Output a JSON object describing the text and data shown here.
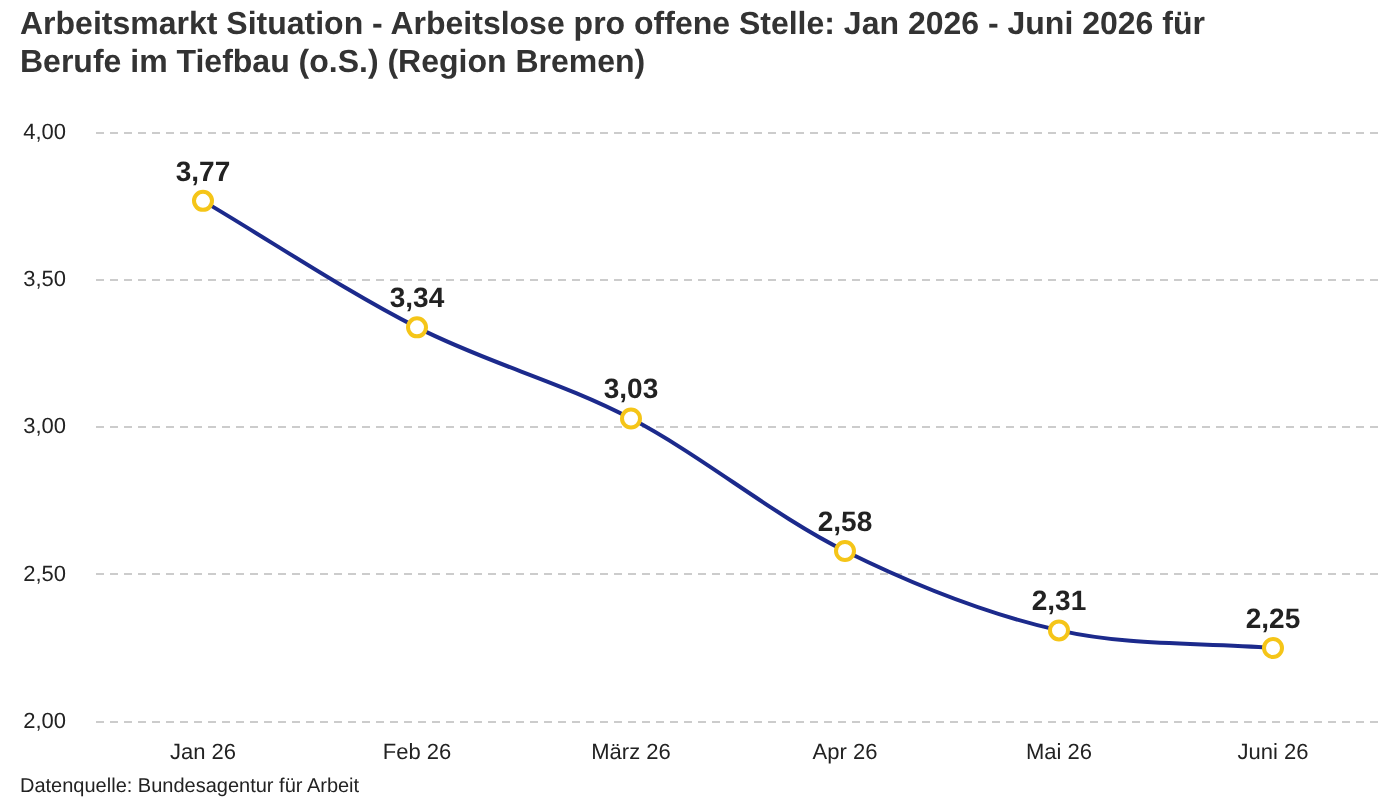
{
  "chart_data": {
    "type": "line",
    "title": "Arbeitsmarkt Situation - Arbeitslose pro offene Stelle: Jan 2026 - Juni 2026 für Berufe im Tiefbau (o.S.) (Region Bremen)",
    "annotations": [
      "Datenquelle: Bundesagentur für Arbeit"
    ],
    "categories": [
      "Jan 26",
      "Feb 26",
      "März 26",
      "Apr 26",
      "Mai 26",
      "Juni 26"
    ],
    "series": [
      {
        "color": "#1c2a8c",
        "colors": [
          "#f5c518",
          "#f5c518",
          "#f5c518",
          "#f5c518",
          "#f5c518",
          "#f5c518"
        ],
        "values": [
          3.77,
          3.34,
          3.03,
          2.58,
          2.31,
          2.25
        ],
        "value_labels": [
          "3,77",
          "3,34",
          "3,03",
          "2,58",
          "2,31",
          "2,25"
        ]
      }
    ],
    "ylim": [
      2,
      4
    ],
    "yticks": [
      {
        "value": 2,
        "label": "2,00"
      },
      {
        "value": 2.5,
        "label": "2,50"
      },
      {
        "value": 3,
        "label": "3,00"
      },
      {
        "value": 3.5,
        "label": "3,50"
      },
      {
        "value": 4,
        "label": "4,00"
      }
    ],
    "grid": "y",
    "legend": false,
    "marker": "circle",
    "line_style": "solid"
  }
}
